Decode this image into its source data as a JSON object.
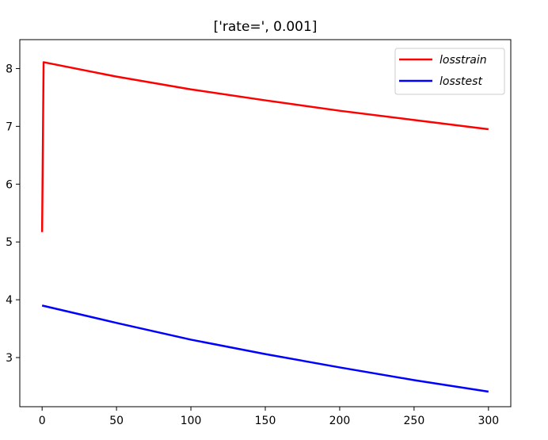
{
  "chart_data": {
    "type": "line",
    "title": "['rate=', 0.001]",
    "xlabel": "",
    "ylabel": "",
    "xlim": [
      -15,
      315
    ],
    "ylim": [
      2.15,
      8.5
    ],
    "xticks": [
      0,
      50,
      100,
      150,
      200,
      250,
      300
    ],
    "yticks": [
      3,
      4,
      5,
      6,
      7,
      8
    ],
    "x_tick_labels": [
      "0",
      "50",
      "100",
      "150",
      "200",
      "250",
      "300"
    ],
    "y_tick_labels": [
      "3",
      "4",
      "5",
      "6",
      "7",
      "8"
    ],
    "grid": false,
    "legend_placement": "top-right",
    "series": [
      {
        "name": "losstrain",
        "color": "#ff0000",
        "x": [
          0,
          1,
          50,
          100,
          150,
          200,
          250,
          300
        ],
        "values": [
          5.17,
          8.11,
          7.86,
          7.64,
          7.45,
          7.27,
          7.11,
          6.95
        ]
      },
      {
        "name": "losstest",
        "color": "#0000ff",
        "x": [
          0,
          50,
          100,
          150,
          200,
          250,
          300
        ],
        "values": [
          3.9,
          3.6,
          3.31,
          3.06,
          2.83,
          2.61,
          2.41
        ]
      }
    ]
  }
}
